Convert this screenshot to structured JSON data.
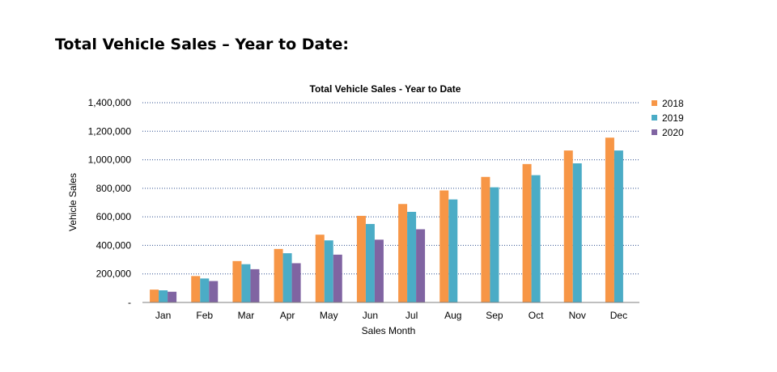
{
  "page": {
    "heading": "Total Vehicle Sales – Year to Date:"
  },
  "chart_data": {
    "type": "bar",
    "title": "Total Vehicle Sales - Year to Date",
    "xlabel": "Sales Month",
    "ylabel": "Vehicle Sales",
    "categories": [
      "Jan",
      "Feb",
      "Mar",
      "Apr",
      "May",
      "Jun",
      "Jul",
      "Aug",
      "Sep",
      "Oct",
      "Nov",
      "Dec"
    ],
    "ylim": [
      0,
      1400000
    ],
    "yticks": [
      {
        "value": 0,
        "label": "-"
      },
      {
        "value": 200000,
        "label": "200,000"
      },
      {
        "value": 400000,
        "label": "400,000"
      },
      {
        "value": 600000,
        "label": "600,000"
      },
      {
        "value": 800000,
        "label": "800,000"
      },
      {
        "value": 1000000,
        "label": "1,000,000"
      },
      {
        "value": 1200000,
        "label": "1,200,000"
      },
      {
        "value": 1400000,
        "label": "1,400,000"
      }
    ],
    "grid": true,
    "grid_style": "dotted",
    "legend_position": "right",
    "series": [
      {
        "name": "2018",
        "color": "#F79646",
        "values": [
          90000,
          185000,
          290000,
          375000,
          475000,
          607000,
          690000,
          785000,
          880000,
          970000,
          1065000,
          1155000
        ]
      },
      {
        "name": "2019",
        "color": "#4BACC6",
        "values": [
          85000,
          168000,
          268000,
          345000,
          435000,
          550000,
          635000,
          722000,
          807000,
          892000,
          975000,
          1065000
        ]
      },
      {
        "name": "2020",
        "color": "#8064A2",
        "values": [
          75000,
          150000,
          233000,
          275000,
          335000,
          440000,
          513000,
          null,
          null,
          null,
          null,
          null
        ]
      }
    ]
  }
}
